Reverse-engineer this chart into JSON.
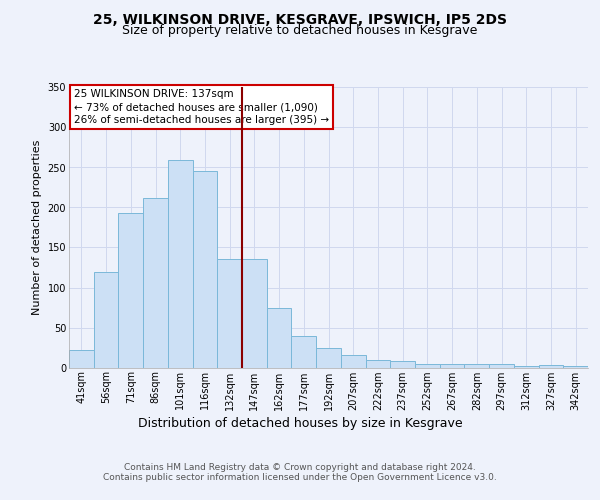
{
  "title": "25, WILKINSON DRIVE, KESGRAVE, IPSWICH, IP5 2DS",
  "subtitle": "Size of property relative to detached houses in Kesgrave",
  "xlabel": "Distribution of detached houses by size in Kesgrave",
  "ylabel": "Number of detached properties",
  "categories": [
    "41sqm",
    "56sqm",
    "71sqm",
    "86sqm",
    "101sqm",
    "116sqm",
    "132sqm",
    "147sqm",
    "162sqm",
    "177sqm",
    "192sqm",
    "207sqm",
    "222sqm",
    "237sqm",
    "252sqm",
    "267sqm",
    "282sqm",
    "297sqm",
    "312sqm",
    "327sqm",
    "342sqm"
  ],
  "values": [
    22,
    119,
    193,
    212,
    259,
    245,
    136,
    136,
    75,
    39,
    25,
    16,
    10,
    8,
    5,
    4,
    4,
    4,
    2,
    3,
    2
  ],
  "bar_color": "#cce0f5",
  "bar_edge_color": "#7ab8d9",
  "vline_index": 6.5,
  "vline_color": "#8b0000",
  "annotation_text": "25 WILKINSON DRIVE: 137sqm\n← 73% of detached houses are smaller (1,090)\n26% of semi-detached houses are larger (395) →",
  "annotation_box_facecolor": "#ffffff",
  "annotation_box_edgecolor": "#cc0000",
  "ylim": [
    0,
    350
  ],
  "yticks": [
    0,
    50,
    100,
    150,
    200,
    250,
    300,
    350
  ],
  "footer": "Contains HM Land Registry data © Crown copyright and database right 2024.\nContains public sector information licensed under the Open Government Licence v3.0.",
  "background_color": "#eef2fb",
  "grid_color": "#d0d8ee",
  "title_fontsize": 10,
  "subtitle_fontsize": 9,
  "xlabel_fontsize": 9,
  "ylabel_fontsize": 8,
  "tick_fontsize": 7,
  "footer_fontsize": 6.5,
  "ann_fontsize": 7.5
}
